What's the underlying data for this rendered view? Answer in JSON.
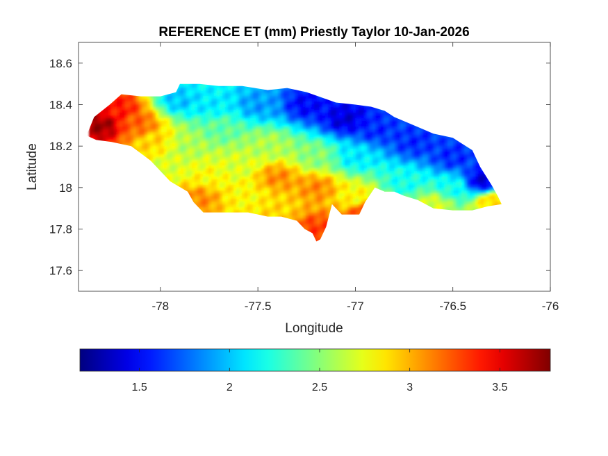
{
  "chart_data": {
    "type": "heatmap",
    "title": "REFERENCE ET (mm) Priestly Taylor 10-Jan-2026",
    "xlabel": "Longitude",
    "ylabel": "Latitude",
    "xlim": [
      -78.42,
      -76.0
    ],
    "ylim": [
      17.5,
      18.7
    ],
    "x_ticks": [
      -78,
      -77.5,
      -77,
      -76.5,
      -76
    ],
    "x_tick_labels": [
      "-78",
      "-77.5",
      "-77",
      "-76.5",
      "-76"
    ],
    "y_ticks": [
      17.6,
      17.8,
      18.0,
      18.2,
      18.4,
      18.6
    ],
    "y_tick_labels": [
      "17.6",
      "17.8",
      "18",
      "18.2",
      "18.4",
      "18.6"
    ],
    "colorbar": {
      "colormap": "jet",
      "clim": [
        1.17,
        3.78
      ],
      "ticks": [
        1.5,
        2,
        2.5,
        3,
        3.5
      ],
      "tick_labels": [
        "1.5",
        "2",
        "2.5",
        "3",
        "3.5"
      ],
      "orientation": "horizontal",
      "placement": "below"
    },
    "grid": false,
    "region_outline": [
      [
        -78.37,
        18.27
      ],
      [
        -78.34,
        18.34
      ],
      [
        -78.26,
        18.4
      ],
      [
        -78.2,
        18.45
      ],
      [
        -78.1,
        18.44
      ],
      [
        -78.0,
        18.44
      ],
      [
        -77.92,
        18.46
      ],
      [
        -77.9,
        18.5
      ],
      [
        -77.8,
        18.5
      ],
      [
        -77.7,
        18.49
      ],
      [
        -77.58,
        18.49
      ],
      [
        -77.45,
        18.47
      ],
      [
        -77.35,
        18.48
      ],
      [
        -77.25,
        18.46
      ],
      [
        -77.1,
        18.41
      ],
      [
        -77.0,
        18.4
      ],
      [
        -76.92,
        18.39
      ],
      [
        -76.85,
        18.37
      ],
      [
        -76.8,
        18.34
      ],
      [
        -76.7,
        18.3
      ],
      [
        -76.6,
        18.26
      ],
      [
        -76.5,
        18.24
      ],
      [
        -76.4,
        18.18
      ],
      [
        -76.36,
        18.1
      ],
      [
        -76.3,
        18.01
      ],
      [
        -76.27,
        17.96
      ],
      [
        -76.25,
        17.92
      ],
      [
        -76.32,
        17.91
      ],
      [
        -76.4,
        17.89
      ],
      [
        -76.5,
        17.89
      ],
      [
        -76.6,
        17.9
      ],
      [
        -76.68,
        17.94
      ],
      [
        -76.75,
        17.96
      ],
      [
        -76.8,
        17.98
      ],
      [
        -76.85,
        17.98
      ],
      [
        -76.9,
        18.0
      ],
      [
        -76.95,
        17.93
      ],
      [
        -76.98,
        17.87
      ],
      [
        -77.03,
        17.87
      ],
      [
        -77.07,
        17.87
      ],
      [
        -77.12,
        17.92
      ],
      [
        -77.15,
        17.81
      ],
      [
        -77.18,
        17.75
      ],
      [
        -77.2,
        17.74
      ],
      [
        -77.22,
        17.78
      ],
      [
        -77.26,
        17.8
      ],
      [
        -77.3,
        17.84
      ],
      [
        -77.38,
        17.86
      ],
      [
        -77.45,
        17.86
      ],
      [
        -77.55,
        17.88
      ],
      [
        -77.7,
        17.88
      ],
      [
        -77.78,
        17.88
      ],
      [
        -77.83,
        17.93
      ],
      [
        -77.86,
        17.98
      ],
      [
        -77.95,
        18.03
      ],
      [
        -78.0,
        18.08
      ],
      [
        -78.05,
        18.13
      ],
      [
        -78.15,
        18.2
      ],
      [
        -78.25,
        18.22
      ],
      [
        -78.33,
        18.23
      ],
      [
        -78.4,
        18.26
      ]
    ],
    "field_anchors": [
      {
        "lon": -78.3,
        "lat": 18.3,
        "value": 3.7
      },
      {
        "lon": -78.22,
        "lat": 18.38,
        "value": 3.4
      },
      {
        "lon": -78.12,
        "lat": 18.3,
        "value": 3.2
      },
      {
        "lon": -78.05,
        "lat": 18.22,
        "value": 2.9
      },
      {
        "lon": -77.95,
        "lat": 18.1,
        "value": 2.7
      },
      {
        "lon": -77.85,
        "lat": 18.2,
        "value": 2.6
      },
      {
        "lon": -77.8,
        "lat": 17.95,
        "value": 3.1
      },
      {
        "lon": -77.75,
        "lat": 18.05,
        "value": 2.8
      },
      {
        "lon": -77.9,
        "lat": 18.42,
        "value": 2.0
      },
      {
        "lon": -77.75,
        "lat": 18.4,
        "value": 2.1
      },
      {
        "lon": -77.5,
        "lat": 18.4,
        "value": 1.9
      },
      {
        "lon": -77.25,
        "lat": 18.4,
        "value": 1.5
      },
      {
        "lon": -77.05,
        "lat": 18.33,
        "value": 1.4
      },
      {
        "lon": -76.9,
        "lat": 18.28,
        "value": 1.6
      },
      {
        "lon": -76.7,
        "lat": 18.22,
        "value": 1.6
      },
      {
        "lon": -76.5,
        "lat": 18.15,
        "value": 1.6
      },
      {
        "lon": -76.35,
        "lat": 18.03,
        "value": 1.4
      },
      {
        "lon": -76.5,
        "lat": 18.0,
        "value": 2.2
      },
      {
        "lon": -76.75,
        "lat": 18.02,
        "value": 2.2
      },
      {
        "lon": -76.6,
        "lat": 17.92,
        "value": 2.7
      },
      {
        "lon": -76.3,
        "lat": 17.93,
        "value": 2.9
      },
      {
        "lon": -77.0,
        "lat": 18.15,
        "value": 2.1
      },
      {
        "lon": -77.0,
        "lat": 17.95,
        "value": 2.8
      },
      {
        "lon": -76.95,
        "lat": 17.88,
        "value": 3.3
      },
      {
        "lon": -77.2,
        "lat": 18.15,
        "value": 2.5
      },
      {
        "lon": -77.2,
        "lat": 18.0,
        "value": 3.1
      },
      {
        "lon": -77.2,
        "lat": 17.8,
        "value": 3.3
      },
      {
        "lon": -77.4,
        "lat": 18.05,
        "value": 3.1
      },
      {
        "lon": -77.45,
        "lat": 18.2,
        "value": 2.6
      },
      {
        "lon": -77.6,
        "lat": 18.1,
        "value": 2.7
      },
      {
        "lon": -77.55,
        "lat": 17.95,
        "value": 2.8
      },
      {
        "lon": -77.4,
        "lat": 17.9,
        "value": 2.9
      },
      {
        "lon": -77.7,
        "lat": 18.28,
        "value": 2.4
      }
    ]
  }
}
